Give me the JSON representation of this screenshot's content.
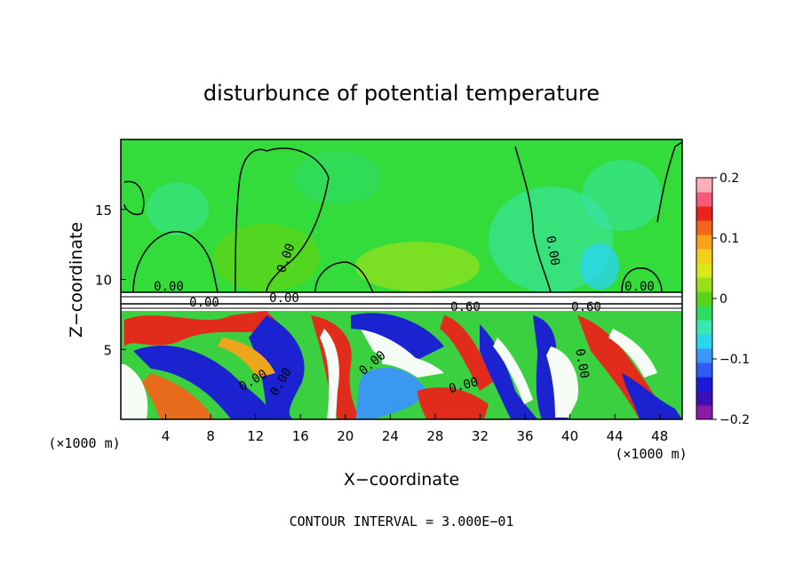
{
  "chart_data": {
    "type": "heatmap",
    "title": "disturbunce of potential temperature",
    "xlabel": "X−coordinate",
    "ylabel": "Z−coordinate",
    "x_unit": "(×1000 m)",
    "z_unit": "(×1000 m)",
    "xlim": [
      0,
      50
    ],
    "ylim": [
      0,
      20
    ],
    "x_ticks": [
      4,
      8,
      12,
      16,
      20,
      24,
      28,
      32,
      36,
      40,
      44,
      48
    ],
    "y_ticks": [
      5,
      10,
      15
    ],
    "colorbar": {
      "min": -0.2,
      "max": 0.2,
      "ticks": [
        "0.2",
        "0.1",
        "0",
        "−0.1",
        "−0.2"
      ],
      "colors": [
        "#8a1aa8",
        "#3b0fb5",
        "#1a1ad8",
        "#2f5cf5",
        "#3b96fb",
        "#2ad6ef",
        "#3ae6b3",
        "#2fdc63",
        "#5ad41a",
        "#9ae01a",
        "#d8e81a",
        "#f4cf1a",
        "#f8a21a",
        "#f2661a",
        "#ea241a",
        "#f65a78",
        "#fbb0b8"
      ]
    },
    "contour_labels": [
      "0.00",
      "0.00",
      "0.00",
      "0.00",
      "0.00",
      "0.00",
      "0.00",
      "0.60",
      "0.60",
      "0.00",
      "0.00",
      "0.00",
      "0.00"
    ],
    "contour_interval_text": "CONTOUR INTERVAL = 3.000E−01"
  }
}
